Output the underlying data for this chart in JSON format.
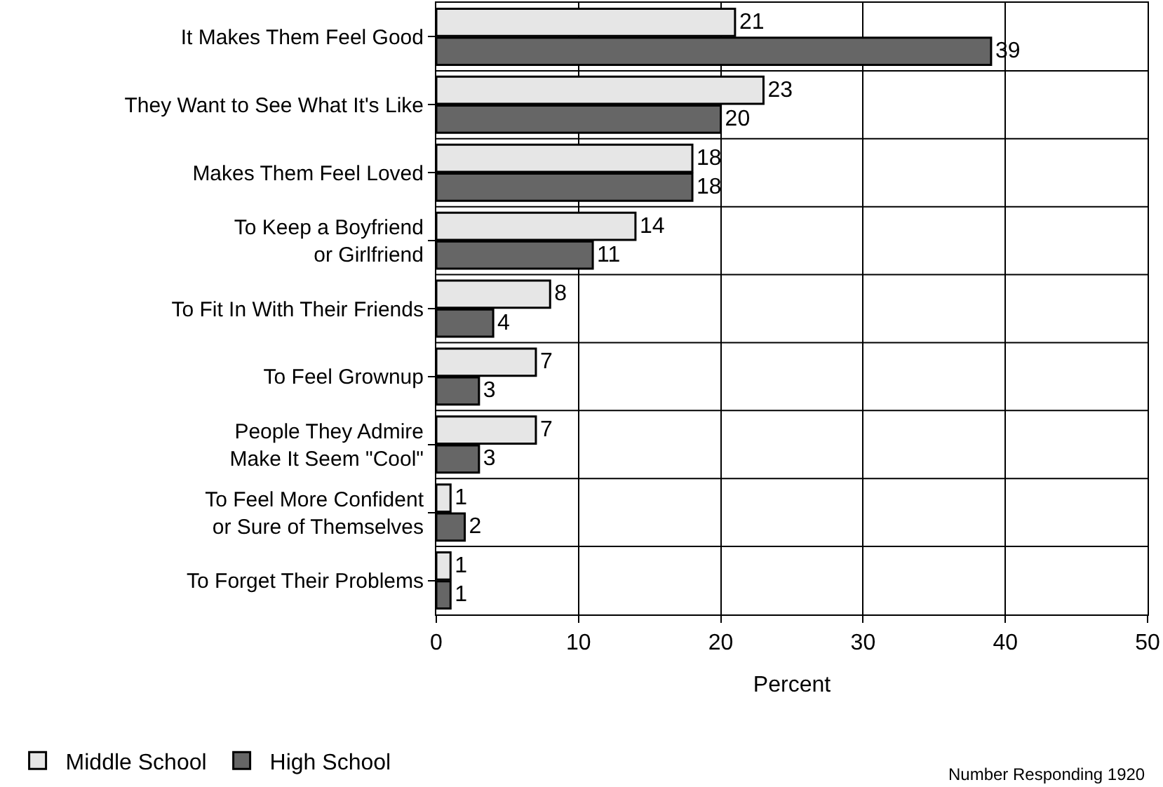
{
  "chart_data": {
    "type": "bar",
    "orientation": "horizontal",
    "xlabel": "Percent",
    "categories": [
      "It Makes Them Feel Good",
      "They Want to See What It's Like",
      "Makes Them Feel Loved",
      "To Keep a Boyfriend\nor Girlfriend",
      "To Fit In With Their Friends",
      "To Feel Grownup",
      "People They Admire\nMake It Seem \"Cool\"",
      "To Feel More Confident\nor Sure of Themselves",
      "To Forget Their Problems"
    ],
    "series": [
      {
        "name": "Middle School",
        "color": "#e6e6e6",
        "values": [
          21,
          23,
          18,
          14,
          8,
          7,
          7,
          1,
          1
        ]
      },
      {
        "name": "High School",
        "color": "#666666",
        "values": [
          39,
          20,
          18,
          11,
          4,
          3,
          3,
          2,
          1
        ]
      }
    ],
    "xlim": [
      0,
      50
    ],
    "xticks": [
      0,
      10,
      20,
      30,
      40,
      50
    ],
    "grid": true,
    "legend": "bottom left",
    "data_labels": true,
    "annotations": [
      "Number Responding 1920"
    ]
  }
}
